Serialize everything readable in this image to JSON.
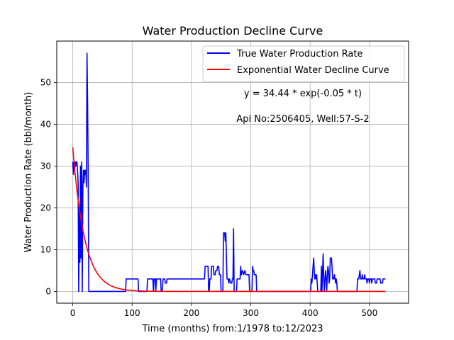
{
  "chart_data": {
    "type": "line",
    "title": "Water Production Decline Curve",
    "xlabel": "Time (months) from:1/1978 to:12/2023",
    "ylabel": "Water Production Rate (bbl/month)",
    "xlim": [
      -27,
      566
    ],
    "ylim": [
      -2.8,
      59.9
    ],
    "xticks": [
      0,
      100,
      200,
      300,
      400,
      500
    ],
    "yticks": [
      0,
      10,
      20,
      30,
      40,
      50
    ],
    "grid": true,
    "legend_position": "top-right",
    "annotations": [
      "y = 34.44 * exp(-0.05 * t)",
      "Api No:2506405, Well:57-S-2"
    ],
    "series": [
      {
        "name": "True Water Production Rate",
        "color": "#0000ff",
        "points": [
          [
            0,
            31
          ],
          [
            1,
            28
          ],
          [
            2,
            31
          ],
          [
            3,
            29
          ],
          [
            4,
            31
          ],
          [
            5,
            30
          ],
          [
            6,
            31
          ],
          [
            7,
            31
          ],
          [
            8,
            29
          ],
          [
            9,
            26
          ],
          [
            10,
            0
          ],
          [
            11,
            20
          ],
          [
            12,
            7
          ],
          [
            13,
            30
          ],
          [
            14,
            8
          ],
          [
            15,
            31
          ],
          [
            16,
            0
          ],
          [
            17,
            25
          ],
          [
            18,
            29
          ],
          [
            19,
            26
          ],
          [
            20,
            29
          ],
          [
            21,
            28
          ],
          [
            22,
            29
          ],
          [
            23,
            25
          ],
          [
            24,
            57
          ],
          [
            25,
            45
          ],
          [
            26,
            28
          ],
          [
            27,
            0
          ],
          [
            89,
            0
          ],
          [
            90,
            3
          ],
          [
            110,
            3
          ],
          [
            111,
            0
          ],
          [
            125,
            0
          ],
          [
            126,
            3
          ],
          [
            135,
            3
          ],
          [
            136,
            0
          ],
          [
            137,
            3
          ],
          [
            139,
            3
          ],
          [
            140,
            0
          ],
          [
            141,
            3
          ],
          [
            148,
            3
          ],
          [
            149,
            0
          ],
          [
            151,
            0
          ],
          [
            152,
            3
          ],
          [
            155,
            3
          ],
          [
            156,
            2
          ],
          [
            158,
            2
          ],
          [
            159,
            3
          ],
          [
            222,
            3
          ],
          [
            223,
            6
          ],
          [
            228,
            6
          ],
          [
            229,
            0
          ],
          [
            230,
            0
          ],
          [
            231,
            3
          ],
          [
            233,
            3
          ],
          [
            234,
            6
          ],
          [
            237,
            6
          ],
          [
            238,
            4
          ],
          [
            240,
            4
          ],
          [
            241,
            5
          ],
          [
            243,
            5
          ],
          [
            244,
            6
          ],
          [
            246,
            6
          ],
          [
            247,
            4
          ],
          [
            249,
            4
          ],
          [
            250,
            0
          ],
          [
            253,
            0
          ],
          [
            254,
            14
          ],
          [
            256,
            14
          ],
          [
            257,
            12
          ],
          [
            258,
            14
          ],
          [
            259,
            8
          ],
          [
            260,
            3
          ],
          [
            262,
            3
          ],
          [
            263,
            2
          ],
          [
            264,
            3
          ],
          [
            266,
            2
          ],
          [
            268,
            2
          ],
          [
            269,
            3
          ],
          [
            270,
            3
          ],
          [
            271,
            15
          ],
          [
            272,
            0
          ],
          [
            276,
            0
          ],
          [
            277,
            3
          ],
          [
            282,
            3
          ],
          [
            283,
            6
          ],
          [
            284,
            4
          ],
          [
            286,
            5
          ],
          [
            288,
            4
          ],
          [
            290,
            5
          ],
          [
            292,
            4
          ],
          [
            297,
            4
          ],
          [
            298,
            0
          ],
          [
            302,
            0
          ],
          [
            303,
            6
          ],
          [
            304,
            5
          ],
          [
            305,
            5
          ],
          [
            306,
            4
          ],
          [
            307,
            4
          ],
          [
            309,
            4
          ],
          [
            310,
            0
          ],
          [
            401,
            0
          ],
          [
            402,
            3
          ],
          [
            403,
            2
          ],
          [
            404,
            4
          ],
          [
            405,
            6
          ],
          [
            406,
            8
          ],
          [
            407,
            5
          ],
          [
            408,
            3
          ],
          [
            409,
            4
          ],
          [
            410,
            3
          ],
          [
            411,
            4
          ],
          [
            412,
            2
          ],
          [
            413,
            0
          ],
          [
            418,
            0
          ],
          [
            419,
            6
          ],
          [
            420,
            0
          ],
          [
            421,
            5
          ],
          [
            422,
            9
          ],
          [
            423,
            3
          ],
          [
            424,
            0
          ],
          [
            425,
            3
          ],
          [
            426,
            5
          ],
          [
            427,
            3
          ],
          [
            428,
            0
          ],
          [
            429,
            4
          ],
          [
            430,
            6
          ],
          [
            431,
            5
          ],
          [
            432,
            2
          ],
          [
            433,
            3
          ],
          [
            434,
            8
          ],
          [
            436,
            8
          ],
          [
            437,
            6
          ],
          [
            438,
            3
          ],
          [
            440,
            3
          ],
          [
            441,
            4
          ],
          [
            442,
            3
          ],
          [
            443,
            2
          ],
          [
            444,
            3
          ],
          [
            445,
            2
          ],
          [
            446,
            0
          ],
          [
            479,
            0
          ],
          [
            480,
            3
          ],
          [
            482,
            3
          ],
          [
            483,
            4
          ],
          [
            484,
            5
          ],
          [
            485,
            3
          ],
          [
            487,
            3
          ],
          [
            488,
            4
          ],
          [
            489,
            3
          ],
          [
            491,
            3
          ],
          [
            492,
            4
          ],
          [
            493,
            3
          ],
          [
            495,
            3
          ],
          [
            496,
            2
          ],
          [
            497,
            3
          ],
          [
            499,
            3
          ],
          [
            500,
            2
          ],
          [
            501,
            3
          ],
          [
            503,
            3
          ],
          [
            504,
            2
          ],
          [
            505,
            3
          ],
          [
            509,
            3
          ],
          [
            510,
            2
          ],
          [
            512,
            2
          ],
          [
            513,
            3
          ],
          [
            518,
            3
          ],
          [
            519,
            2
          ],
          [
            522,
            2
          ],
          [
            523,
            3
          ],
          [
            527,
            3
          ]
        ]
      },
      {
        "name": "Exponential Water Decline Curve",
        "color": "#ff0000",
        "model": {
          "a": 34.44,
          "b": -0.05,
          "t_start": 0,
          "t_end": 527
        }
      }
    ]
  }
}
